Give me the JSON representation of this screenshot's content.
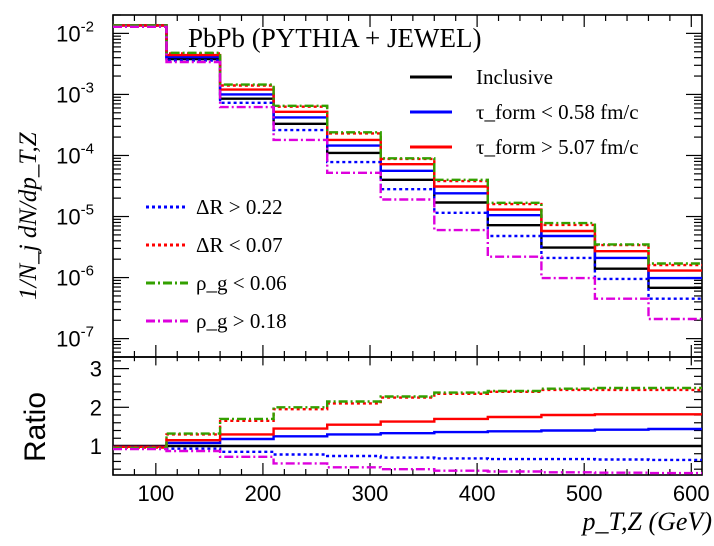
{
  "chart_data": [
    {
      "type": "line",
      "style": "step-histogram",
      "title": "PbPb (PYTHIA + JEWEL)",
      "xlabel": "p_T,Z (GeV)",
      "ylabel": "1/N_j dN/dp_T,Z",
      "yscale": "log",
      "xlim": [
        60,
        610
      ],
      "ylim": [
        5e-08,
        0.02
      ],
      "bin_edges": [
        60,
        110,
        160,
        210,
        260,
        310,
        360,
        410,
        460,
        510,
        560,
        610
      ],
      "x_ticks": [
        100,
        200,
        300,
        400,
        500,
        600
      ],
      "x_tick_labels": [
        "100",
        "200",
        "300",
        "400",
        "500",
        "600"
      ],
      "y_ticks": [
        1e-07,
        1e-06,
        1e-05,
        0.0001,
        0.001,
        0.01
      ],
      "series": [
        {
          "name": "Inclusive",
          "color": "#000000",
          "dash": "solid",
          "values": [
            0.0135,
            0.0038,
            0.00085,
            0.00033,
            0.00011,
            4e-05,
            1.7e-05,
            7.2e-06,
            3.1e-06,
            1.4e-06,
            6.8e-07
          ]
        },
        {
          "name": "τ_form < 0.58 fm/c",
          "color": "#0000ff",
          "dash": "solid",
          "values": [
            0.0135,
            0.0041,
            0.001,
            0.00042,
            0.000145,
            5.6e-05,
            2.4e-05,
            1.05e-05,
            4.8e-06,
            2.1e-06,
            9.8e-07
          ]
        },
        {
          "name": "τ_form > 5.07 fm/c",
          "color": "#ff0000",
          "dash": "solid",
          "values": [
            0.0135,
            0.0044,
            0.0012,
            0.00052,
            0.00018,
            7.2e-05,
            3.1e-05,
            1.3e-05,
            5.8e-06,
            2.7e-06,
            1.3e-06
          ]
        },
        {
          "name": "ΔR > 0.22",
          "color": "#0000ff",
          "dash": "dotted",
          "values": [
            0.0135,
            0.0036,
            0.00073,
            0.00026,
            7.8e-05,
            2.8e-05,
            1.15e-05,
            4.8e-06,
            2.1e-06,
            9.5e-07,
            4.5e-07
          ]
        },
        {
          "name": "ΔR < 0.07",
          "color": "#ff0000",
          "dash": "dotted",
          "values": [
            0.0135,
            0.0047,
            0.0014,
            0.00063,
            0.00023,
            8.8e-05,
            3.8e-05,
            1.6e-05,
            7.3e-06,
            3.4e-06,
            1.6e-06
          ]
        },
        {
          "name": "ρ_g < 0.06",
          "color": "#33a000",
          "dash": "dashdot",
          "values": [
            0.0135,
            0.0048,
            0.00145,
            0.00065,
            0.00024,
            9e-05,
            4e-05,
            1.68e-05,
            7.8e-06,
            3.5e-06,
            1.7e-06
          ]
        },
        {
          "name": "ρ_g > 0.18",
          "color": "#dd00dd",
          "dash": "dashdot",
          "values": [
            0.0128,
            0.0034,
            0.00062,
            0.00018,
            5.2e-05,
            1.9e-05,
            6e-06,
            2.2e-06,
            9.8e-07,
            4.5e-07,
            2.1e-07
          ]
        }
      ],
      "legend": [
        {
          "placement": "top-right",
          "entries": [
            "Inclusive",
            "τ_form < 0.58 fm/c",
            "τ_form > 5.07 fm/c"
          ]
        },
        {
          "placement": "bottom-left",
          "entries": [
            "ΔR > 0.22",
            "ΔR < 0.07",
            "ρ_g < 0.06",
            "ρ_g > 0.18"
          ]
        }
      ]
    },
    {
      "type": "line",
      "style": "step-histogram",
      "title": "",
      "xlabel": "p_T,Z (GeV)",
      "ylabel": "Ratio",
      "xlim": [
        60,
        610
      ],
      "ylim": [
        0.25,
        3.3
      ],
      "bin_edges": [
        60,
        110,
        160,
        210,
        260,
        310,
        360,
        410,
        460,
        510,
        560,
        610
      ],
      "y_ticks": [
        1,
        2,
        3
      ],
      "y_tick_labels": [
        "1",
        "2",
        "3"
      ],
      "series": [
        {
          "name": "Inclusive",
          "color": "#000000",
          "dash": "solid",
          "values": [
            1.0,
            1.0,
            1.0,
            1.0,
            1.0,
            1.0,
            1.0,
            1.0,
            1.0,
            1.0,
            1.0
          ]
        },
        {
          "name": "τ_form < 0.58 fm/c",
          "color": "#0000ff",
          "dash": "solid",
          "values": [
            0.98,
            1.08,
            1.18,
            1.25,
            1.3,
            1.33,
            1.36,
            1.38,
            1.4,
            1.42,
            1.44
          ]
        },
        {
          "name": "τ_form > 5.07 fm/c",
          "color": "#ff0000",
          "dash": "solid",
          "values": [
            0.98,
            1.15,
            1.3,
            1.45,
            1.55,
            1.63,
            1.7,
            1.75,
            1.8,
            1.82,
            1.82
          ]
        },
        {
          "name": "ΔR > 0.22",
          "color": "#0000ff",
          "dash": "dotted",
          "values": [
            0.97,
            0.93,
            0.85,
            0.78,
            0.74,
            0.7,
            0.68,
            0.66,
            0.66,
            0.65,
            0.64
          ]
        },
        {
          "name": "ΔR < 0.07",
          "color": "#ff0000",
          "dash": "dotted",
          "values": [
            0.96,
            1.3,
            1.65,
            1.95,
            2.1,
            2.25,
            2.35,
            2.4,
            2.45,
            2.45,
            2.45
          ]
        },
        {
          "name": "ρ_g < 0.06",
          "color": "#33a000",
          "dash": "dashdot",
          "values": [
            0.95,
            1.32,
            1.7,
            2.0,
            2.15,
            2.28,
            2.38,
            2.42,
            2.48,
            2.5,
            2.5
          ]
        },
        {
          "name": "ρ_g > 0.18",
          "color": "#dd00dd",
          "dash": "dashdot",
          "values": [
            0.92,
            0.87,
            0.72,
            0.55,
            0.45,
            0.4,
            0.36,
            0.34,
            0.32,
            0.31,
            0.3
          ]
        }
      ]
    }
  ]
}
